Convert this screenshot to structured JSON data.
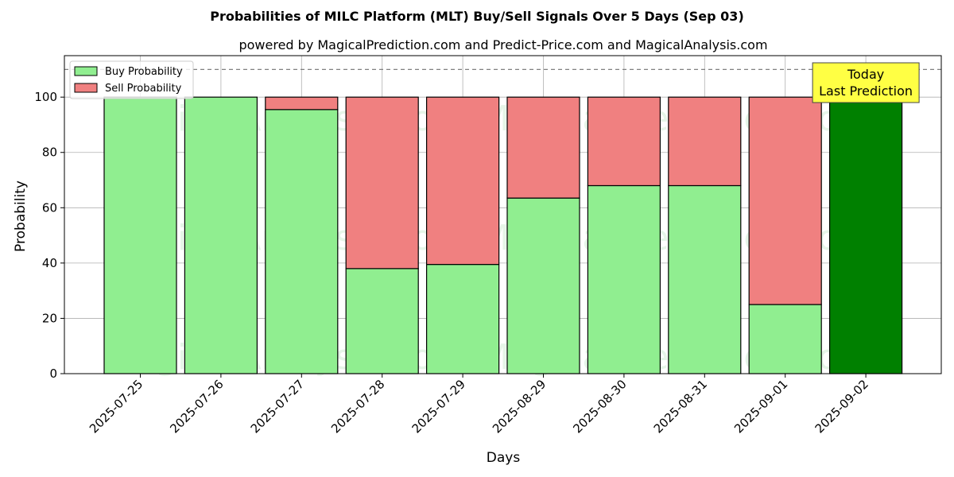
{
  "chart_data": {
    "type": "bar",
    "stacked": true,
    "title": "Probabilities of MILC Platform (MLT) Buy/Sell Signals Over 5 Days (Sep 03)",
    "subtitle": "powered by MagicalPrediction.com and Predict-Price.com and MagicalAnalysis.com",
    "xlabel": "Days",
    "ylabel": "Probability",
    "ylim": [
      0,
      115
    ],
    "yticks": [
      0,
      20,
      40,
      60,
      80,
      100
    ],
    "grid": true,
    "legend_position": "top-left",
    "categories": [
      "2025-07-25",
      "2025-07-26",
      "2025-07-27",
      "2025-07-28",
      "2025-07-29",
      "2025-08-29",
      "2025-08-30",
      "2025-08-31",
      "2025-09-01",
      "2025-09-02"
    ],
    "series": [
      {
        "name": "Buy Probability",
        "color": "#90ee90",
        "values": [
          100,
          100,
          95.5,
          38,
          39.5,
          63.5,
          68,
          68,
          25,
          100
        ]
      },
      {
        "name": "Sell Probability",
        "color": "#f08080",
        "values": [
          0,
          0,
          4.5,
          62,
          60.5,
          36.5,
          32,
          32,
          75,
          0
        ]
      }
    ],
    "highlight_bar": {
      "index": 9,
      "color": "#008000"
    },
    "reference_line": {
      "y": 110,
      "style": "dashed"
    },
    "annotation": {
      "line1": "Today",
      "line2": "Last Prediction",
      "color": "#ffff44"
    },
    "watermarks": [
      "MagicalAnalysis.com",
      "MagicalPrediction.com"
    ]
  }
}
